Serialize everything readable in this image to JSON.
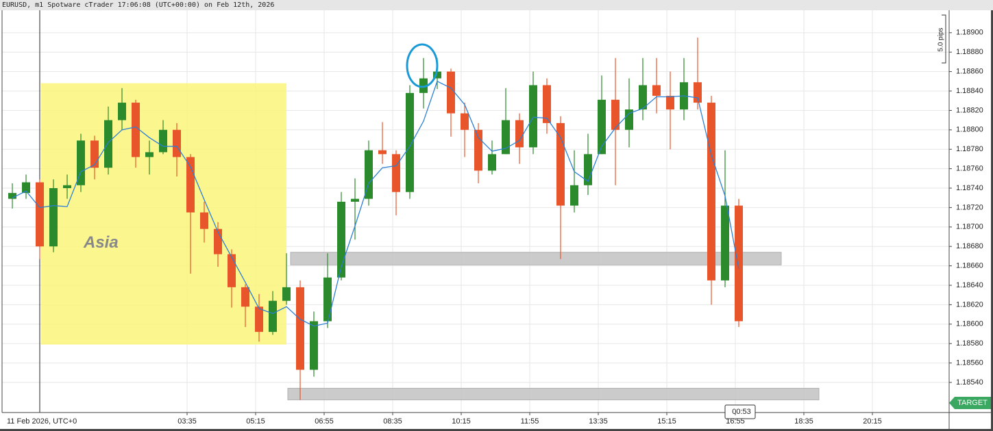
{
  "chart_data": {
    "type": "candlestick",
    "title": "EURUSD, m1 Spotware cTrader 17:06:08 (UTC+00:00) on Feb 12th, 2026",
    "x": [
      -50,
      -30,
      -10,
      10,
      30,
      50,
      70,
      90,
      110,
      130,
      150,
      170,
      190,
      210,
      230,
      250,
      270,
      290,
      310,
      330,
      350,
      370,
      390,
      410,
      430,
      450,
      470,
      490,
      510,
      530,
      550,
      570,
      590,
      610,
      630,
      650,
      670,
      690,
      710,
      730,
      750,
      770,
      790,
      810,
      830,
      850,
      870,
      890,
      910,
      930,
      950,
      970,
      990,
      1010
    ],
    "open": [
      1.18729,
      1.18735,
      1.18746,
      1.1868,
      1.1874,
      1.18743,
      1.18789,
      1.18761,
      1.1881,
      1.18828,
      1.18772,
      1.18777,
      1.188,
      1.18772,
      1.18715,
      1.18698,
      1.18672,
      1.18638,
      1.18618,
      1.18592,
      1.18624,
      1.18638,
      1.18553,
      1.18603,
      1.18648,
      1.18726,
      1.18729,
      1.18779,
      1.18775,
      1.18736,
      1.18838,
      1.18853,
      1.1886,
      1.18817,
      1.188,
      1.18758,
      1.18775,
      1.1881,
      1.18782,
      1.18846,
      1.18807,
      1.18722,
      1.18743,
      1.18775,
      1.18831,
      1.188,
      1.18821,
      1.18846,
      1.18835,
      1.18821,
      1.18849,
      1.18828,
      1.18645,
      1.18722
    ],
    "high": [
      1.18745,
      1.18754,
      1.18749,
      1.18749,
      1.18754,
      1.18796,
      1.18794,
      1.18824,
      1.18843,
      1.18831,
      1.18789,
      1.1881,
      1.18807,
      1.18775,
      1.18726,
      1.18705,
      1.18677,
      1.18641,
      1.18631,
      1.18634,
      1.18673,
      1.18645,
      1.18613,
      1.18673,
      1.18736,
      1.1875,
      1.18789,
      1.18808,
      1.18779,
      1.18846,
      1.18874,
      1.18874,
      1.18863,
      1.18828,
      1.18807,
      1.18789,
      1.18843,
      1.18817,
      1.1886,
      1.18853,
      1.18814,
      1.18779,
      1.18796,
      1.18856,
      1.18874,
      1.18853,
      1.18874,
      1.18874,
      1.1886,
      1.18874,
      1.18895,
      1.18835,
      1.18779,
      1.18729
    ],
    "low": [
      1.18719,
      1.18729,
      1.18667,
      1.18674,
      1.18729,
      1.18736,
      1.18749,
      1.18754,
      1.188,
      1.18761,
      1.18754,
      1.18775,
      1.18752,
      1.18652,
      1.18684,
      1.18659,
      1.18617,
      1.18597,
      1.18582,
      1.18589,
      1.1862,
      1.18522,
      1.18546,
      1.18596,
      1.18645,
      1.18687,
      1.18722,
      1.18765,
      1.18712,
      1.18729,
      1.18822,
      1.18842,
      1.18793,
      1.18772,
      1.18745,
      1.18754,
      1.18775,
      1.18765,
      1.18775,
      1.18796,
      1.18667,
      1.18715,
      1.18733,
      1.18775,
      1.18743,
      1.18782,
      1.1881,
      1.18817,
      1.1878,
      1.1881,
      1.18821,
      1.1862,
      1.18638,
      1.18597
    ],
    "close": [
      1.18735,
      1.18746,
      1.1868,
      1.1874,
      1.18743,
      1.18789,
      1.18761,
      1.1881,
      1.18828,
      1.18772,
      1.18777,
      1.188,
      1.18772,
      1.18715,
      1.18698,
      1.18672,
      1.18638,
      1.18618,
      1.18592,
      1.18624,
      1.18638,
      1.18553,
      1.18603,
      1.18648,
      1.18726,
      1.18729,
      1.18779,
      1.18775,
      1.18736,
      1.18838,
      1.18853,
      1.1886,
      1.18817,
      1.188,
      1.18758,
      1.18775,
      1.1881,
      1.18782,
      1.18846,
      1.18807,
      1.18722,
      1.18743,
      1.18775,
      1.18831,
      1.188,
      1.18821,
      1.18846,
      1.18835,
      1.18821,
      1.18849,
      1.18828,
      1.18645,
      1.18722,
      1.18603
    ],
    "ma": [
      1.1873,
      1.18737,
      1.1872,
      1.18722,
      1.18721,
      1.18757,
      1.18764,
      1.18787,
      1.188,
      1.18803,
      1.18792,
      1.18783,
      1.18783,
      1.18762,
      1.18728,
      1.18695,
      1.18669,
      1.18643,
      1.18616,
      1.18611,
      1.18618,
      1.18605,
      1.18598,
      1.18601,
      1.18659,
      1.18701,
      1.18745,
      1.18761,
      1.18763,
      1.18783,
      1.18809,
      1.1885,
      1.18843,
      1.18826,
      1.18792,
      1.18778,
      1.18781,
      1.18789,
      1.18813,
      1.18812,
      1.18792,
      1.18757,
      1.18747,
      1.18783,
      1.18802,
      1.18817,
      1.18822,
      1.18834,
      1.18834,
      1.18835,
      1.18833,
      1.18774,
      1.18732,
      1.18657
    ],
    "up_color": "#2b8a2b",
    "down_color": "#e8552b",
    "ma_color": "#2a7fd4",
    "xlim": [
      -53,
      1327
    ],
    "ylim": [
      1.18509,
      1.18921
    ],
    "xticks": [
      {
        "value": 0,
        "label": "11 Feb 2026, UTC+0"
      },
      {
        "value": 215,
        "label": "03:35"
      },
      {
        "value": 315,
        "label": "05:15"
      },
      {
        "value": 415,
        "label": "06:55"
      },
      {
        "value": 515,
        "label": "08:35"
      },
      {
        "value": 615,
        "label": "10:15"
      },
      {
        "value": 715,
        "label": "11:55"
      },
      {
        "value": 815,
        "label": "13:35"
      },
      {
        "value": 915,
        "label": "15:15"
      },
      {
        "value": 1015,
        "label": "16:55"
      },
      {
        "value": 1115,
        "label": "18:35"
      },
      {
        "value": 1215,
        "label": "20:15"
      }
    ],
    "yticks": [
      {
        "value": 1.1854,
        "label": "1.18540"
      },
      {
        "value": 1.1856,
        "label": "1.18560"
      },
      {
        "value": 1.1858,
        "label": "1.18580"
      },
      {
        "value": 1.186,
        "label": "1.18600"
      },
      {
        "value": 1.1862,
        "label": "1.18620"
      },
      {
        "value": 1.1864,
        "label": "1.18640"
      },
      {
        "value": 1.1866,
        "label": "1.18660"
      },
      {
        "value": 1.1868,
        "label": "1.18680"
      },
      {
        "value": 1.187,
        "label": "1.18700"
      },
      {
        "value": 1.1872,
        "label": "1.18720"
      },
      {
        "value": 1.1874,
        "label": "1.18740"
      },
      {
        "value": 1.1876,
        "label": "1.18760"
      },
      {
        "value": 1.1878,
        "label": "1.18780"
      },
      {
        "value": 1.188,
        "label": "1.18800"
      },
      {
        "value": 1.1882,
        "label": "1.18820"
      },
      {
        "value": 1.1884,
        "label": "1.18840"
      },
      {
        "value": 1.1886,
        "label": "1.18860"
      },
      {
        "value": 1.1888,
        "label": "1.18880"
      },
      {
        "value": 1.189,
        "label": "1.18900"
      }
    ],
    "grid": true,
    "session_box": {
      "label": "Asia",
      "color": "#fbf57a",
      "x": [
        2,
        360
      ],
      "y": [
        1.18579,
        1.18848
      ]
    },
    "zones": [
      {
        "color": "#c6c6c6",
        "x": [
          366,
          1082
        ],
        "y": [
          1.18661,
          1.18674
        ]
      },
      {
        "color": "#c6c6c6",
        "x": [
          362,
          1137
        ],
        "y": [
          1.18522,
          1.18534
        ]
      }
    ],
    "scale_label": "5.0 pips",
    "countdown": "00:53",
    "target_label": "TARGET"
  }
}
